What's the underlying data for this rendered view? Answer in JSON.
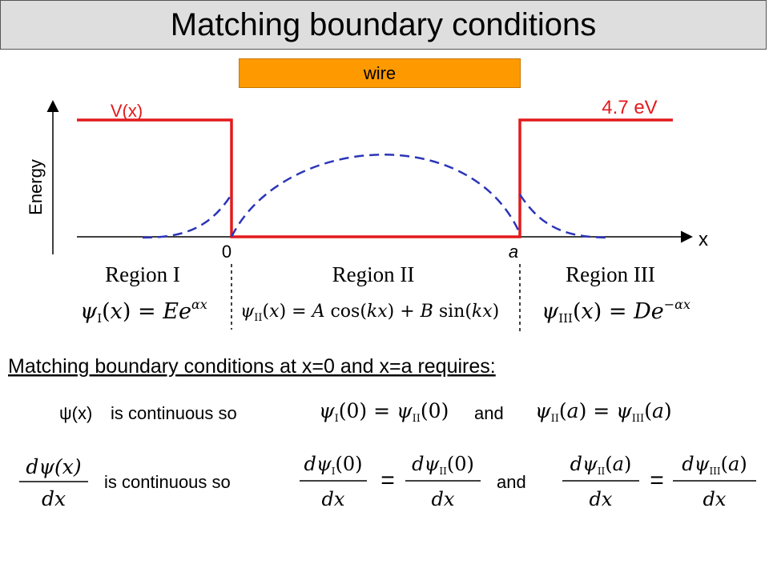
{
  "title": "Matching boundary conditions",
  "wire_label": "wire",
  "diagram": {
    "potential_label": "V(x)",
    "barrier_label": "4.7 eV",
    "energy_axis_label": "Energy",
    "x_axis_label": "x",
    "origin_label": "0",
    "a_label": "a",
    "regions": [
      "Region I",
      "Region II",
      "Region III"
    ],
    "potential_color": "#e31a1c",
    "wavefunction_color": "#2b35b8"
  },
  "equations": {
    "region1": "ψI(x) = Ee^{αx}",
    "region2": "ψII(x) = A cos(kx) + B sin(kx)",
    "region3": "ψIII(x) = De^{−αx}"
  },
  "conditions": {
    "heading": "Matching boundary conditions at x=0 and x=a requires:",
    "psi_label": "ψ(x)",
    "continuous_so": "is continuous so",
    "and": "and",
    "cond1a": "ψI(0) = ψII(0)",
    "cond1b": "ψII(a) = ψIII(a)",
    "cond2a": "dψI(0)/dx = dψII(0)/dx",
    "cond2b": "dψII(a)/dx = dψIII(a)/dx"
  }
}
